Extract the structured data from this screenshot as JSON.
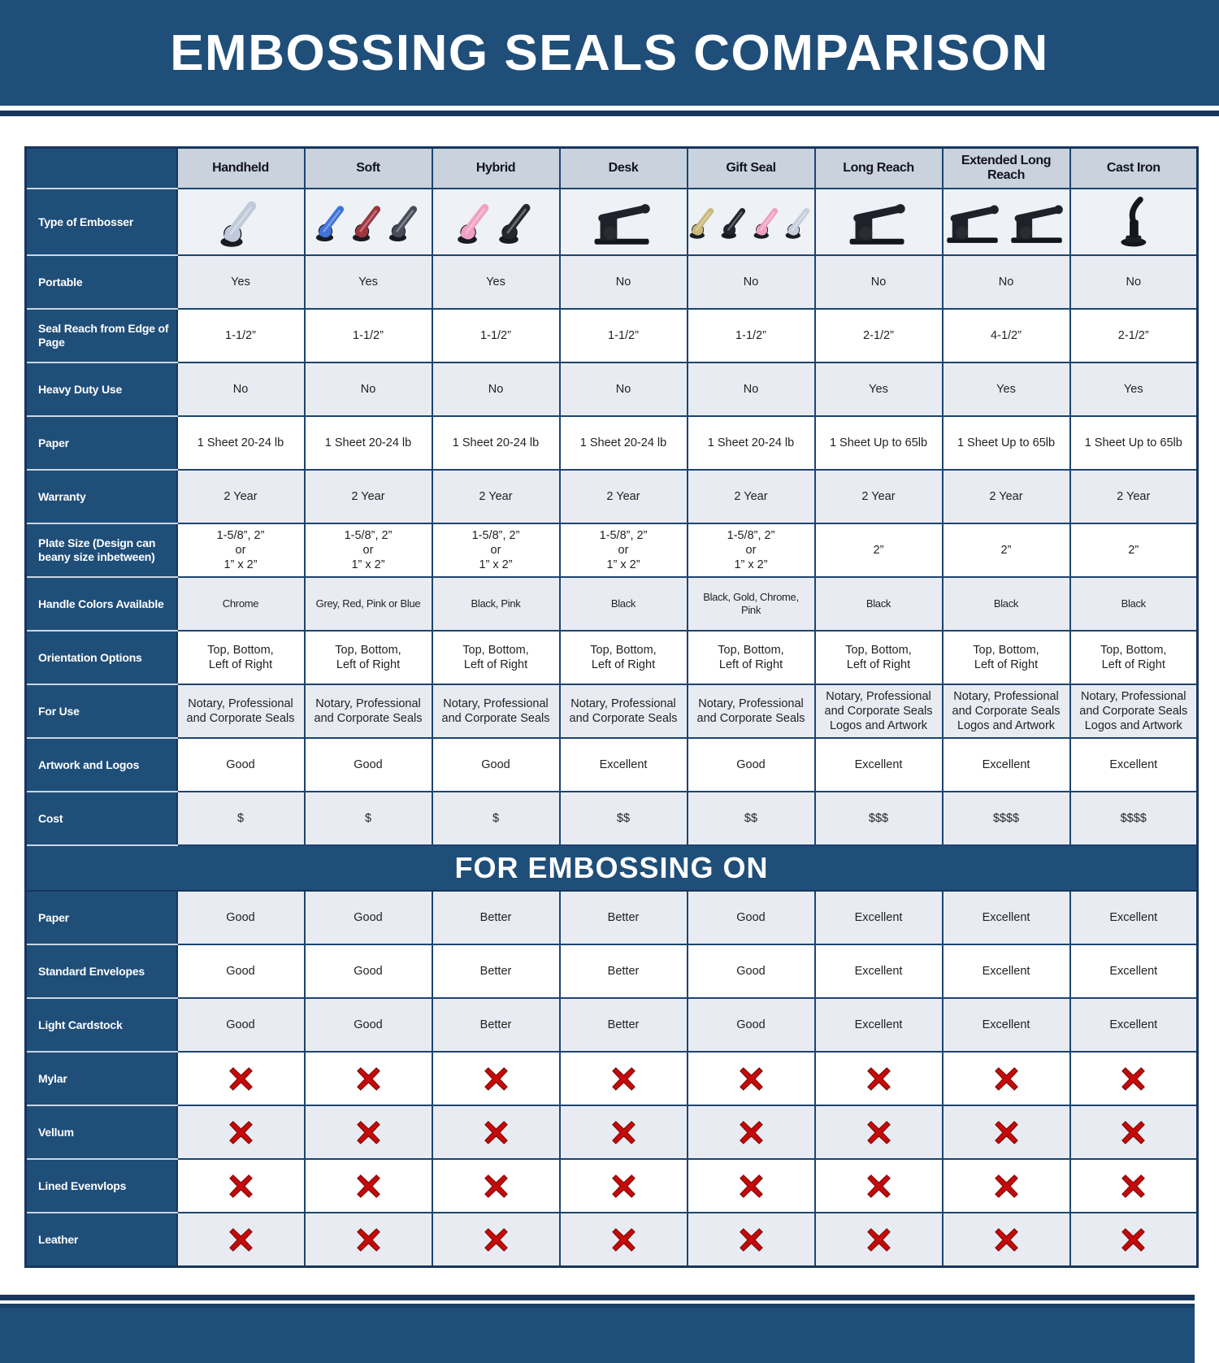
{
  "title": "EMBOSSING SEALS COMPARISON",
  "section_title": "FOR EMBOSSING ON",
  "colors": {
    "primary_blue": "#1f4e79",
    "border_navy": "#17365d",
    "column_header_fill": "#c9d2dd",
    "row_light_fill": "#e8ecf2",
    "x_mark_red": "#c40a0a"
  },
  "chart_data": {
    "type": "table",
    "columns": [
      "Handheld",
      "Soft",
      "Hybrid",
      "Desk",
      "Gift Seal",
      "Long Reach",
      "Extended Long Reach",
      "Cast Iron"
    ],
    "spec_rows": [
      {
        "label": "Type of Embosser",
        "images": true
      },
      {
        "label": "Portable",
        "values": [
          "Yes",
          "Yes",
          "Yes",
          "No",
          "No",
          "No",
          "No",
          "No"
        ]
      },
      {
        "label": "Seal Reach from Edge of Page",
        "values": [
          "1-1/2”",
          "1-1/2”",
          "1-1/2”",
          "1-1/2”",
          "1-1/2”",
          "2-1/2”",
          "4-1/2”",
          "2-1/2”"
        ]
      },
      {
        "label": "Heavy Duty Use",
        "values": [
          "No",
          "No",
          "No",
          "No",
          "No",
          "Yes",
          "Yes",
          "Yes"
        ]
      },
      {
        "label": "Paper",
        "values": [
          "1 Sheet 20-24 lb",
          "1 Sheet 20-24 lb",
          "1 Sheet 20-24 lb",
          "1 Sheet 20-24 lb",
          "1 Sheet 20-24 lb",
          "1 Sheet Up to 65lb",
          "1 Sheet Up to 65lb",
          "1 Sheet Up to 65lb"
        ]
      },
      {
        "label": "Warranty",
        "values": [
          "2 Year",
          "2 Year",
          "2 Year",
          "2 Year",
          "2 Year",
          "2 Year",
          "2 Year",
          "2 Year"
        ]
      },
      {
        "label": "Plate Size (Design can beany size inbetween)",
        "values": [
          "1-5/8”, 2”\nor\n1” x 2”",
          "1-5/8”, 2”\nor\n1” x 2”",
          "1-5/8”, 2”\nor\n1” x 2”",
          "1-5/8”, 2”\nor\n1” x 2”",
          "1-5/8”, 2”\nor\n1” x 2”",
          "2”",
          "2”",
          "2”"
        ]
      },
      {
        "label": "Handle Colors Available",
        "values": [
          "Chrome",
          "Grey, Red, Pink or Blue",
          "Black, Pink",
          "Black",
          "Black, Gold, Chrome, Pink",
          "Black",
          "Black",
          "Black"
        ]
      },
      {
        "label": "Orientation Options",
        "values": [
          "Top, Bottom,\nLeft of Right",
          "Top, Bottom,\nLeft of Right",
          "Top, Bottom,\nLeft of Right",
          "Top, Bottom,\nLeft of Right",
          "Top, Bottom,\nLeft of Right",
          "Top, Bottom,\nLeft of Right",
          "Top, Bottom,\nLeft of Right",
          "Top, Bottom,\nLeft of Right"
        ]
      },
      {
        "label": "For Use",
        "values": [
          "Notary, Professional\nand Corporate Seals",
          "Notary, Professional\nand Corporate Seals",
          "Notary, Professional\nand Corporate Seals",
          "Notary, Professional\nand Corporate Seals",
          "Notary, Professional\nand Corporate Seals",
          "Notary, Professional\nand Corporate Seals\nLogos and Artwork",
          "Notary, Professional\nand Corporate Seals\nLogos and Artwork",
          "Notary, Professional\nand Corporate Seals\nLogos and Artwork"
        ]
      },
      {
        "label": "Artwork and Logos",
        "values": [
          "Good",
          "Good",
          "Good",
          "Excellent",
          "Good",
          "Excellent",
          "Excellent",
          "Excellent"
        ]
      },
      {
        "label": "Cost",
        "values": [
          "$",
          "$",
          "$",
          "$$",
          "$$",
          "$$$",
          "$$$$",
          "$$$$"
        ]
      }
    ],
    "embossing_rows": [
      {
        "label": "Paper",
        "values": [
          "Good",
          "Good",
          "Better",
          "Better",
          "Good",
          "Excellent",
          "Excellent",
          "Excellent"
        ]
      },
      {
        "label": "Standard Envelopes",
        "values": [
          "Good",
          "Good",
          "Better",
          "Better",
          "Good",
          "Excellent",
          "Excellent",
          "Excellent"
        ]
      },
      {
        "label": "Light Cardstock",
        "values": [
          "Good",
          "Good",
          "Better",
          "Better",
          "Good",
          "Excellent",
          "Excellent",
          "Excellent"
        ]
      },
      {
        "label": "Mylar",
        "x": true
      },
      {
        "label": "Vellum",
        "x": true
      },
      {
        "label": "Lined Evenvlops",
        "x": true
      },
      {
        "label": "Leather",
        "x": true
      }
    ]
  },
  "embosser_images": [
    [
      {
        "shape": "plier",
        "color": "#bfc9d9"
      }
    ],
    [
      {
        "shape": "plier",
        "color": "#4073d8"
      },
      {
        "shape": "plier",
        "color": "#9e3440"
      },
      {
        "shape": "plier",
        "color": "#474c59"
      }
    ],
    [
      {
        "shape": "plier",
        "color": "#f0a0c4"
      },
      {
        "shape": "plier",
        "color": "#262730"
      }
    ],
    [
      {
        "shape": "press",
        "color": "#20212a"
      }
    ],
    [
      {
        "shape": "plier",
        "color": "#c8b87a"
      },
      {
        "shape": "plier",
        "color": "#23242d"
      },
      {
        "shape": "plier",
        "color": "#f0a0c4"
      },
      {
        "shape": "plier",
        "color": "#c6cedb"
      }
    ],
    [
      {
        "shape": "press",
        "color": "#1f2029"
      }
    ],
    [
      {
        "shape": "press",
        "color": "#1f2029"
      },
      {
        "shape": "press",
        "color": "#1f2029"
      }
    ],
    [
      {
        "shape": "upright",
        "color": "#16161c"
      }
    ]
  ]
}
